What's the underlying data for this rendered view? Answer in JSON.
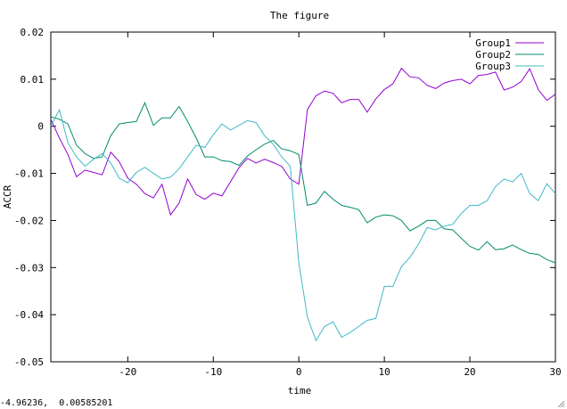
{
  "status_bar": {
    "coordinates": "-4.96236,  0.00585201"
  },
  "chart_data": {
    "type": "line",
    "title": "The figure",
    "xlabel": "time",
    "ylabel": "ACCR",
    "xlim": [
      -29,
      30
    ],
    "ylim": [
      -0.05,
      0.02
    ],
    "xticks": [
      -20,
      -10,
      0,
      10,
      20,
      30
    ],
    "xtick_labels": [
      "-20",
      "-10",
      "0",
      "10",
      "20",
      "30"
    ],
    "yticks": [
      0.02,
      0.01,
      0,
      -0.01,
      -0.02,
      -0.03,
      -0.04,
      -0.05
    ],
    "ytick_labels": [
      "0.02",
      "0.01",
      "0",
      "-0.01",
      "-0.02",
      "-0.03",
      "-0.04",
      "-0.05"
    ],
    "grid": false,
    "legend_position": "top-right",
    "x": [
      -29,
      -28,
      -27,
      -26,
      -25,
      -24,
      -23,
      -22,
      -21,
      -20,
      -19,
      -18,
      -17,
      -16,
      -15,
      -14,
      -13,
      -12,
      -11,
      -10,
      -9,
      -8,
      -7,
      -6,
      -5,
      -4,
      -3,
      -2,
      -1,
      0,
      1,
      2,
      3,
      4,
      5,
      6,
      7,
      8,
      9,
      10,
      11,
      12,
      13,
      14,
      15,
      16,
      17,
      18,
      19,
      20,
      21,
      22,
      23,
      24,
      25,
      26,
      27,
      28,
      29,
      30
    ],
    "series": [
      {
        "name": "Group1",
        "color": "#9400d3",
        "values": [
          0.0015,
          -0.0025,
          -0.006,
          -0.0107,
          -0.0093,
          -0.0098,
          -0.0103,
          -0.0055,
          -0.0075,
          -0.011,
          -0.0123,
          -0.0143,
          -0.0152,
          -0.0123,
          -0.0188,
          -0.0163,
          -0.0112,
          -0.0145,
          -0.0155,
          -0.0142,
          -0.0148,
          -0.0118,
          -0.0088,
          -0.0068,
          -0.0078,
          -0.007,
          -0.0077,
          -0.0085,
          -0.0112,
          -0.0123,
          0.0035,
          0.0065,
          0.0075,
          0.007,
          0.005,
          0.0057,
          0.0057,
          0.003,
          0.0058,
          0.0078,
          0.009,
          0.0123,
          0.0105,
          0.0103,
          0.0087,
          0.008,
          0.0092,
          0.0097,
          0.01,
          0.009,
          0.0108,
          0.011,
          0.0115,
          0.0077,
          0.0083,
          0.0095,
          0.0122,
          0.0078,
          0.0055,
          0.0068
        ]
      },
      {
        "name": "Group2",
        "color": "#008b6b",
        "values": [
          0.002,
          0.0015,
          0.0005,
          -0.004,
          -0.0058,
          -0.0068,
          -0.0065,
          -0.002,
          0.0005,
          0.0008,
          0.001,
          0.005,
          0.0002,
          0.0018,
          0.0018,
          0.0042,
          0.001,
          -0.0025,
          -0.0065,
          -0.0065,
          -0.0073,
          -0.0075,
          -0.0083,
          -0.0063,
          -0.005,
          -0.0038,
          -0.003,
          -0.0048,
          -0.0052,
          -0.006,
          -0.0168,
          -0.0163,
          -0.0138,
          -0.0155,
          -0.0168,
          -0.0172,
          -0.0177,
          -0.0205,
          -0.0193,
          -0.0188,
          -0.019,
          -0.02,
          -0.0222,
          -0.0212,
          -0.02,
          -0.02,
          -0.0218,
          -0.022,
          -0.0238,
          -0.0255,
          -0.0263,
          -0.0245,
          -0.0262,
          -0.026,
          -0.0252,
          -0.0262,
          -0.027,
          -0.0272,
          -0.0283,
          -0.029
        ]
      },
      {
        "name": "Group3",
        "color": "#40b8c8",
        "values": [
          0.0,
          0.0035,
          -0.0035,
          -0.0065,
          -0.0085,
          -0.007,
          -0.0058,
          -0.0078,
          -0.011,
          -0.012,
          -0.0098,
          -0.0087,
          -0.01,
          -0.0112,
          -0.0108,
          -0.009,
          -0.0065,
          -0.004,
          -0.0045,
          -0.0018,
          0.0005,
          -0.0008,
          0.0002,
          0.0012,
          0.0008,
          -0.002,
          -0.0038,
          -0.0065,
          -0.0085,
          -0.029,
          -0.0405,
          -0.0455,
          -0.0425,
          -0.0415,
          -0.0448,
          -0.0438,
          -0.0425,
          -0.0412,
          -0.0408,
          -0.034,
          -0.034,
          -0.0298,
          -0.0278,
          -0.025,
          -0.0215,
          -0.022,
          -0.0212,
          -0.0208,
          -0.0185,
          -0.0168,
          -0.0168,
          -0.0158,
          -0.0128,
          -0.0112,
          -0.0118,
          -0.01,
          -0.0143,
          -0.0158,
          -0.0122,
          -0.0143
        ]
      }
    ]
  }
}
